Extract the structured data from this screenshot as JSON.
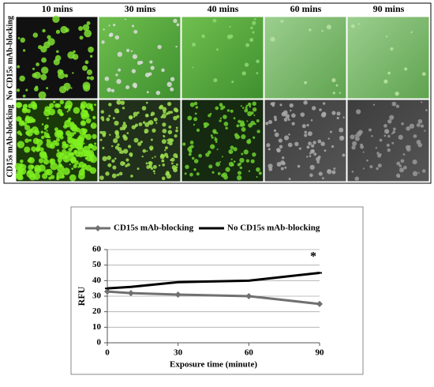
{
  "figure": {
    "columns": [
      "10 mins",
      "30 mins",
      "40 mins",
      "60 mins",
      "90 mins"
    ],
    "rows": [
      "No CD15s mAb-blocking",
      "CD15s mAb-blocking"
    ]
  },
  "chart_data": {
    "type": "line",
    "x_label": "Exposure time (minute)",
    "y_label": "RFU",
    "annotation": "*",
    "x": [
      0,
      10,
      30,
      60,
      90
    ],
    "series": [
      {
        "name": "CD15s mAb-blocking",
        "color": "#707070",
        "values": [
          33,
          32,
          31,
          30,
          25
        ]
      },
      {
        "name": "No CD15s mAb-blocking",
        "color": "#000000",
        "values": [
          35,
          36,
          39,
          40,
          45
        ]
      }
    ],
    "xlim": [
      0,
      90
    ],
    "xticks": [
      0,
      30,
      60,
      90
    ],
    "ylim": [
      0,
      60
    ],
    "yticks": [
      0,
      10,
      20,
      30,
      40,
      50,
      60
    ],
    "grid": true
  }
}
